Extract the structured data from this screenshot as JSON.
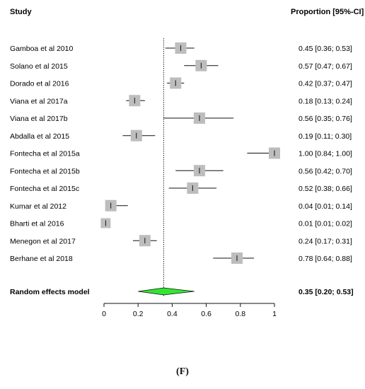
{
  "chart_data": {
    "type": "forest",
    "headers": {
      "study": "Study",
      "estimate": "Proportion [95%-CI]"
    },
    "studies": [
      {
        "name": "Gamboa et al 2010",
        "est": 0.45,
        "lo": 0.36,
        "hi": 0.53,
        "label": "0.45 [0.36; 0.53]"
      },
      {
        "name": "Solano et al 2015",
        "est": 0.57,
        "lo": 0.47,
        "hi": 0.67,
        "label": "0.57 [0.47; 0.67]"
      },
      {
        "name": "Dorado et al 2016",
        "est": 0.42,
        "lo": 0.37,
        "hi": 0.47,
        "label": "0.42 [0.37; 0.47]"
      },
      {
        "name": "Viana et al 2017a",
        "est": 0.18,
        "lo": 0.13,
        "hi": 0.24,
        "label": "0.18 [0.13; 0.24]"
      },
      {
        "name": "Viana et al 2017b",
        "est": 0.56,
        "lo": 0.35,
        "hi": 0.76,
        "label": "0.56 [0.35; 0.76]"
      },
      {
        "name": "Abdalla et al 2015",
        "est": 0.19,
        "lo": 0.11,
        "hi": 0.3,
        "label": "0.19 [0.11; 0.30]"
      },
      {
        "name": "Fontecha et al 2015a",
        "est": 1.0,
        "lo": 0.84,
        "hi": 1.0,
        "label": "1.00 [0.84; 1.00]"
      },
      {
        "name": "Fontecha et al 2015b",
        "est": 0.56,
        "lo": 0.42,
        "hi": 0.7,
        "label": "0.56 [0.42; 0.70]"
      },
      {
        "name": "Fontecha et al 2015c",
        "est": 0.52,
        "lo": 0.38,
        "hi": 0.66,
        "label": "0.52 [0.38; 0.66]"
      },
      {
        "name": "Kumar et al 2012",
        "est": 0.04,
        "lo": 0.01,
        "hi": 0.14,
        "label": "0.04 [0.01; 0.14]"
      },
      {
        "name": "Bharti et al 2016",
        "est": 0.01,
        "lo": 0.01,
        "hi": 0.02,
        "label": "0.01 [0.01; 0.02]"
      },
      {
        "name": "Menegon et al 2017",
        "est": 0.24,
        "lo": 0.17,
        "hi": 0.31,
        "label": "0.24 [0.17; 0.31]"
      },
      {
        "name": "Berhane et al 2018",
        "est": 0.78,
        "lo": 0.64,
        "hi": 0.88,
        "label": "0.78 [0.64; 0.88]"
      }
    ],
    "summary": {
      "name": "Random effects model",
      "est": 0.35,
      "lo": 0.2,
      "hi": 0.53,
      "label": "0.35 [0.20; 0.53]"
    },
    "x_ticks": [
      0,
      0.2,
      0.4,
      0.6,
      0.8,
      1
    ],
    "x_tick_labels": [
      "0",
      "0.2",
      "0.4",
      "0.6",
      "0.8",
      "1"
    ],
    "xlim": [
      0,
      1
    ],
    "reference_line": 0.35,
    "colors": {
      "box": "#bdbdbd",
      "diamond": "#33e533",
      "line": "#111111"
    }
  },
  "panel_label": "(F)"
}
